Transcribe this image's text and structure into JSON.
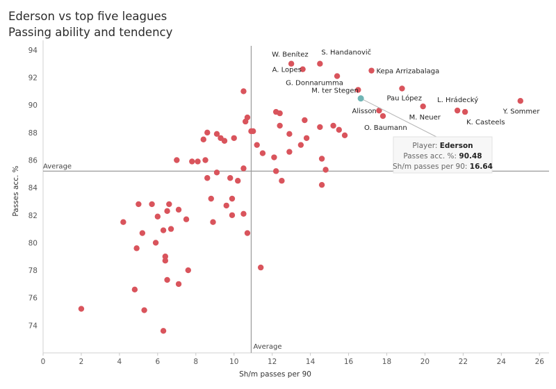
{
  "title": "Ederson vs top five leagues",
  "subtitle": "Passing ability and tendency",
  "chart_data": {
    "type": "scatter",
    "xlabel": "Sh/m passes per 90",
    "ylabel": "Passes acc. %",
    "xlim": [
      0,
      26.5
    ],
    "ylim": [
      72,
      94.5
    ],
    "x_ticks": [
      0,
      2,
      4,
      6,
      8,
      10,
      12,
      14,
      16,
      18,
      20,
      22,
      24,
      26
    ],
    "y_ticks": [
      74,
      76,
      78,
      80,
      82,
      84,
      86,
      88,
      90,
      92,
      94
    ],
    "grid": false,
    "average_x": 10.9,
    "average_y": 85.2,
    "average_x_label": "Average",
    "average_y_label": "Average",
    "colors": {
      "points": "#d9545c",
      "highlight": "#6fb5b5",
      "avg_line": "#9a9a9a"
    },
    "highlight": {
      "name": "Ederson",
      "x": 16.64,
      "y": 90.48
    },
    "tooltip": {
      "player_label": "Player:",
      "player_value": "Ederson",
      "acc_label": "Passes acc. %:",
      "acc_value": "90.48",
      "sm_label": "Sh/m passes per 90:",
      "sm_value": "16.64"
    },
    "labeled_points": [
      {
        "name": "W. Benítez",
        "x": 13.0,
        "y": 93.0
      },
      {
        "name": "S. Handanovič",
        "x": 14.5,
        "y": 93.0
      },
      {
        "name": "A. Lopes",
        "x": 13.6,
        "y": 92.6
      },
      {
        "name": "G. Donnarumma",
        "x": 15.4,
        "y": 92.1
      },
      {
        "name": "Kepa Arrizabalaga",
        "x": 17.2,
        "y": 92.5
      },
      {
        "name": "M. ter Stegen",
        "x": 16.5,
        "y": 91.1
      },
      {
        "name": "Pau López",
        "x": 18.8,
        "y": 91.2
      },
      {
        "name": "Alisson",
        "x": 17.6,
        "y": 89.6
      },
      {
        "name": "O. Baumann",
        "x": 17.8,
        "y": 89.2
      },
      {
        "name": "M. Neuer",
        "x": 19.9,
        "y": 89.9
      },
      {
        "name": "L. Hrádecký",
        "x": 21.7,
        "y": 89.6
      },
      {
        "name": "K. Casteels",
        "x": 22.1,
        "y": 89.5
      },
      {
        "name": "Y. Sommer",
        "x": 25.0,
        "y": 90.3
      }
    ],
    "points": [
      [
        2.0,
        75.2
      ],
      [
        4.2,
        81.5
      ],
      [
        4.8,
        76.6
      ],
      [
        4.9,
        79.6
      ],
      [
        5.0,
        82.8
      ],
      [
        5.2,
        80.7
      ],
      [
        5.3,
        75.1
      ],
      [
        5.7,
        82.8
      ],
      [
        5.9,
        80.0
      ],
      [
        6.0,
        81.9
      ],
      [
        6.3,
        73.6
      ],
      [
        6.3,
        80.9
      ],
      [
        6.4,
        79.0
      ],
      [
        6.4,
        78.7
      ],
      [
        6.5,
        82.3
      ],
      [
        6.5,
        77.3
      ],
      [
        6.6,
        82.8
      ],
      [
        6.7,
        81.0
      ],
      [
        7.0,
        86.0
      ],
      [
        7.1,
        82.4
      ],
      [
        7.1,
        77.0
      ],
      [
        7.5,
        81.7
      ],
      [
        7.6,
        78.0
      ],
      [
        7.8,
        85.9
      ],
      [
        8.1,
        85.9
      ],
      [
        8.4,
        87.5
      ],
      [
        8.5,
        86.0
      ],
      [
        8.6,
        84.7
      ],
      [
        8.6,
        88.0
      ],
      [
        8.8,
        83.2
      ],
      [
        8.9,
        81.5
      ],
      [
        9.1,
        87.9
      ],
      [
        9.1,
        85.1
      ],
      [
        9.3,
        87.6
      ],
      [
        9.5,
        87.4
      ],
      [
        9.6,
        82.7
      ],
      [
        9.8,
        84.7
      ],
      [
        9.9,
        83.2
      ],
      [
        9.9,
        82.0
      ],
      [
        10.0,
        87.6
      ],
      [
        10.2,
        84.5
      ],
      [
        10.5,
        85.4
      ],
      [
        10.5,
        82.1
      ],
      [
        10.5,
        91.0
      ],
      [
        10.6,
        88.8
      ],
      [
        10.7,
        89.1
      ],
      [
        10.7,
        80.7
      ],
      [
        10.9,
        88.1
      ],
      [
        11.0,
        88.1
      ],
      [
        11.2,
        87.1
      ],
      [
        11.4,
        78.2
      ],
      [
        11.5,
        86.5
      ],
      [
        12.1,
        86.2
      ],
      [
        12.2,
        85.2
      ],
      [
        12.2,
        89.5
      ],
      [
        12.4,
        89.4
      ],
      [
        12.4,
        88.5
      ],
      [
        12.5,
        84.5
      ],
      [
        12.9,
        86.6
      ],
      [
        12.9,
        87.9
      ],
      [
        13.5,
        87.1
      ],
      [
        13.7,
        88.9
      ],
      [
        13.8,
        87.6
      ],
      [
        14.5,
        88.4
      ],
      [
        14.6,
        86.1
      ],
      [
        14.6,
        84.2
      ],
      [
        14.8,
        85.3
      ],
      [
        15.2,
        88.5
      ],
      [
        15.5,
        88.2
      ],
      [
        15.8,
        87.8
      ]
    ]
  }
}
